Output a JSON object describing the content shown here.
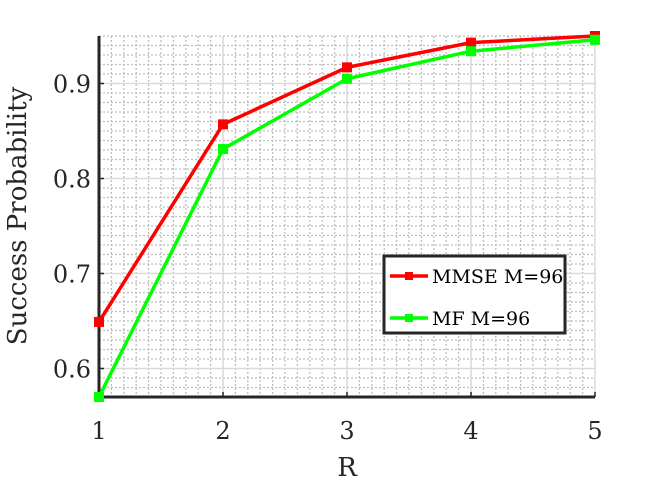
{
  "chart_data": {
    "type": "line",
    "title": "",
    "xlabel": "R",
    "ylabel": "Success Probability",
    "x": [
      1,
      2,
      3,
      4,
      5
    ],
    "xticks": [
      1,
      2,
      3,
      4,
      5
    ],
    "xtick_labels": [
      "1",
      "2",
      "3",
      "4",
      "5"
    ],
    "yticks": [
      0.6,
      0.7,
      0.8,
      0.9
    ],
    "ytick_labels": [
      "0.6",
      "0.7",
      "0.8",
      "0.9"
    ],
    "xlim": [
      1,
      5
    ],
    "ylim": [
      0.57,
      0.95
    ],
    "grid": true,
    "minor_grid": true,
    "legend_position": "lower-right",
    "series": [
      {
        "name": "MMSE M=96",
        "color": "#ff0000",
        "marker": "square",
        "values": [
          0.649,
          0.857,
          0.917,
          0.943,
          0.95
        ]
      },
      {
        "name": "MF M=96",
        "color": "#00ff00",
        "marker": "square",
        "values": [
          0.57,
          0.831,
          0.905,
          0.934,
          0.946
        ]
      }
    ]
  }
}
